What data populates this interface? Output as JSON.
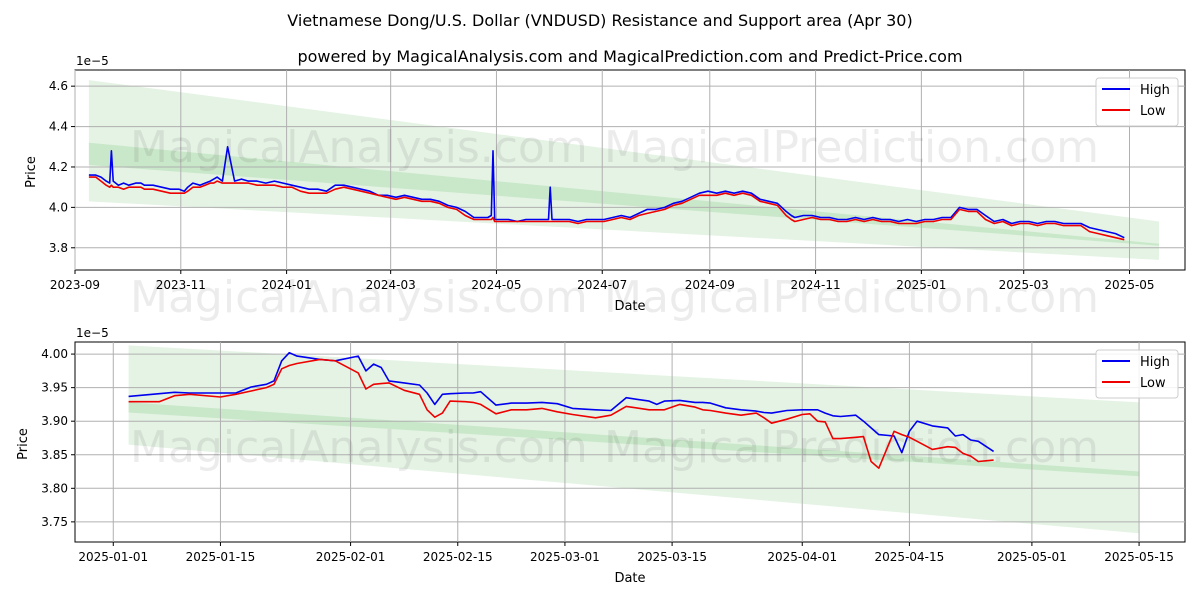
{
  "title": "Vietnamese Dong/U.S. Dollar (VNDUSD) Resistance and Support area (Apr 30)",
  "subtitle": "powered by MagicalAnalysis.com and MagicalPrediction.com and Predict-Price.com",
  "watermarks": [
    "MagicalAnalysis.com",
    "MagicalPrediction.com"
  ],
  "colors": {
    "high": "#0000ee",
    "low": "#ee0000",
    "band": "#2ca02c"
  },
  "chart_data": [
    {
      "type": "line",
      "xlabel": "Date",
      "ylabel": "Price",
      "scale_label": "1e−5",
      "xlim": [
        0,
        640
      ],
      "ylim": [
        3.69,
        4.68
      ],
      "xticks": [
        {
          "x": 0,
          "label": "2023-09"
        },
        {
          "x": 61,
          "label": "2023-11"
        },
        {
          "x": 122,
          "label": "2024-01"
        },
        {
          "x": 182,
          "label": "2024-03"
        },
        {
          "x": 243,
          "label": "2024-05"
        },
        {
          "x": 304,
          "label": "2024-07"
        },
        {
          "x": 366,
          "label": "2024-09"
        },
        {
          "x": 427,
          "label": "2024-11"
        },
        {
          "x": 488,
          "label": "2025-01"
        },
        {
          "x": 547,
          "label": "2025-03"
        },
        {
          "x": 608,
          "label": "2025-05"
        }
      ],
      "yticks": [
        3.8,
        4.0,
        4.2,
        4.4,
        4.6
      ],
      "ytick_labels": [
        "3.8",
        "4.0",
        "4.2",
        "4.4",
        "4.6"
      ],
      "legend": {
        "position": "top-right",
        "entries": [
          "High",
          "Low"
        ]
      },
      "bands": [
        {
          "x": [
            8,
            625
          ],
          "upper": [
            4.63,
            3.93
          ],
          "lower": [
            4.03,
            3.74
          ]
        },
        {
          "x": [
            8,
            625
          ],
          "upper": [
            4.32,
            3.82
          ],
          "lower": [
            4.21,
            3.81
          ]
        }
      ],
      "series": [
        {
          "name": "High",
          "x": [
            8,
            12,
            15,
            18,
            20,
            21,
            22,
            25,
            28,
            31,
            35,
            38,
            40,
            45,
            50,
            55,
            60,
            63,
            65,
            68,
            72,
            75,
            78,
            80,
            82,
            85,
            88,
            92,
            96,
            100,
            105,
            110,
            115,
            120,
            125,
            130,
            135,
            140,
            145,
            150,
            155,
            160,
            165,
            170,
            175,
            180,
            185,
            190,
            195,
            200,
            205,
            210,
            215,
            220,
            225,
            230,
            235,
            238,
            240,
            241,
            242,
            245,
            250,
            255,
            260,
            265,
            270,
            273,
            274,
            275,
            280,
            285,
            290,
            295,
            300,
            305,
            310,
            315,
            320,
            325,
            330,
            335,
            340,
            345,
            350,
            355,
            360,
            365,
            370,
            375,
            380,
            385,
            390,
            395,
            400,
            405,
            410,
            413,
            415,
            420,
            425,
            430,
            435,
            440,
            445,
            450,
            455,
            460,
            465,
            470,
            475,
            480,
            485,
            490,
            495,
            500,
            505,
            510,
            515,
            520,
            525,
            530,
            535,
            540,
            545,
            550,
            555,
            560,
            565,
            570,
            575,
            580,
            585,
            590,
            595,
            600,
            605
          ],
          "values": [
            4.16,
            4.16,
            4.15,
            4.13,
            4.12,
            4.28,
            4.13,
            4.11,
            4.12,
            4.11,
            4.12,
            4.12,
            4.11,
            4.11,
            4.1,
            4.09,
            4.09,
            4.08,
            4.1,
            4.12,
            4.11,
            4.12,
            4.13,
            4.14,
            4.15,
            4.13,
            4.3,
            4.13,
            4.14,
            4.13,
            4.13,
            4.12,
            4.13,
            4.12,
            4.11,
            4.1,
            4.09,
            4.09,
            4.08,
            4.11,
            4.11,
            4.1,
            4.09,
            4.08,
            4.06,
            4.06,
            4.05,
            4.06,
            4.05,
            4.04,
            4.04,
            4.03,
            4.01,
            4.0,
            3.98,
            3.95,
            3.95,
            3.95,
            3.96,
            4.28,
            3.94,
            3.94,
            3.94,
            3.93,
            3.94,
            3.94,
            3.94,
            3.94,
            4.1,
            3.94,
            3.94,
            3.94,
            3.93,
            3.94,
            3.94,
            3.94,
            3.95,
            3.96,
            3.95,
            3.97,
            3.99,
            3.99,
            4.0,
            4.02,
            4.03,
            4.05,
            4.07,
            4.08,
            4.07,
            4.08,
            4.07,
            4.08,
            4.07,
            4.04,
            4.03,
            4.02,
            3.98,
            3.96,
            3.95,
            3.96,
            3.96,
            3.95,
            3.95,
            3.94,
            3.94,
            3.95,
            3.94,
            3.95,
            3.94,
            3.94,
            3.93,
            3.94,
            3.93,
            3.94,
            3.94,
            3.95,
            3.95,
            4.0,
            3.99,
            3.99,
            3.96,
            3.93,
            3.94,
            3.92,
            3.93,
            3.93,
            3.92,
            3.93,
            3.93,
            3.92,
            3.92,
            3.92,
            3.9,
            3.89,
            3.88,
            3.87,
            3.85
          ]
        },
        {
          "name": "Low",
          "x": [
            8,
            12,
            15,
            18,
            20,
            21,
            22,
            25,
            28,
            31,
            35,
            38,
            40,
            45,
            50,
            55,
            60,
            63,
            65,
            68,
            72,
            75,
            78,
            80,
            82,
            85,
            88,
            92,
            96,
            100,
            105,
            110,
            115,
            120,
            125,
            130,
            135,
            140,
            145,
            150,
            155,
            160,
            165,
            170,
            175,
            180,
            185,
            190,
            195,
            200,
            205,
            210,
            215,
            220,
            225,
            230,
            235,
            238,
            240,
            241,
            242,
            245,
            250,
            255,
            260,
            265,
            270,
            273,
            274,
            275,
            280,
            285,
            290,
            295,
            300,
            305,
            310,
            315,
            320,
            325,
            330,
            335,
            340,
            345,
            350,
            355,
            360,
            365,
            370,
            375,
            380,
            385,
            390,
            395,
            400,
            405,
            410,
            413,
            415,
            420,
            425,
            430,
            435,
            440,
            445,
            450,
            455,
            460,
            465,
            470,
            475,
            480,
            485,
            490,
            495,
            500,
            505,
            510,
            515,
            520,
            525,
            530,
            535,
            540,
            545,
            550,
            555,
            560,
            565,
            570,
            575,
            580,
            585,
            590,
            595,
            600,
            605
          ],
          "values": [
            4.15,
            4.15,
            4.13,
            4.11,
            4.1,
            4.11,
            4.1,
            4.1,
            4.09,
            4.1,
            4.1,
            4.1,
            4.09,
            4.09,
            4.08,
            4.07,
            4.07,
            4.07,
            4.08,
            4.1,
            4.1,
            4.11,
            4.12,
            4.12,
            4.13,
            4.12,
            4.12,
            4.12,
            4.12,
            4.12,
            4.11,
            4.11,
            4.11,
            4.1,
            4.1,
            4.08,
            4.07,
            4.07,
            4.07,
            4.09,
            4.1,
            4.09,
            4.08,
            4.07,
            4.06,
            4.05,
            4.04,
            4.05,
            4.04,
            4.03,
            4.03,
            4.02,
            4.0,
            3.99,
            3.96,
            3.94,
            3.94,
            3.94,
            3.94,
            3.95,
            3.93,
            3.93,
            3.93,
            3.93,
            3.93,
            3.93,
            3.93,
            3.93,
            3.93,
            3.93,
            3.93,
            3.93,
            3.92,
            3.93,
            3.93,
            3.93,
            3.94,
            3.95,
            3.94,
            3.96,
            3.97,
            3.98,
            3.99,
            4.01,
            4.02,
            4.04,
            4.06,
            4.06,
            4.06,
            4.07,
            4.06,
            4.07,
            4.06,
            4.03,
            4.02,
            4.01,
            3.96,
            3.94,
            3.93,
            3.94,
            3.95,
            3.94,
            3.94,
            3.93,
            3.93,
            3.94,
            3.93,
            3.94,
            3.93,
            3.93,
            3.92,
            3.92,
            3.92,
            3.93,
            3.93,
            3.94,
            3.94,
            3.99,
            3.98,
            3.98,
            3.94,
            3.92,
            3.93,
            3.91,
            3.92,
            3.92,
            3.91,
            3.92,
            3.92,
            3.91,
            3.91,
            3.91,
            3.88,
            3.87,
            3.86,
            3.85,
            3.84
          ]
        }
      ]
    },
    {
      "type": "line",
      "xlabel": "Date",
      "ylabel": "Price",
      "scale_label": "1e−5",
      "xlim": [
        -5,
        140
      ],
      "ylim": [
        3.72,
        4.018
      ],
      "xticks": [
        {
          "x": 0,
          "label": "2025-01-01"
        },
        {
          "x": 14,
          "label": "2025-01-15"
        },
        {
          "x": 31,
          "label": "2025-02-01"
        },
        {
          "x": 45,
          "label": "2025-02-15"
        },
        {
          "x": 59,
          "label": "2025-03-01"
        },
        {
          "x": 73,
          "label": "2025-03-15"
        },
        {
          "x": 90,
          "label": "2025-04-01"
        },
        {
          "x": 104,
          "label": "2025-04-15"
        },
        {
          "x": 120,
          "label": "2025-05-01"
        },
        {
          "x": 134,
          "label": "2025-05-15"
        }
      ],
      "yticks": [
        3.75,
        3.8,
        3.85,
        3.9,
        3.95,
        4.0
      ],
      "ytick_labels": [
        "3.75",
        "3.80",
        "3.85",
        "3.90",
        "3.95",
        "4.00"
      ],
      "legend": {
        "position": "top-right",
        "entries": [
          "High",
          "Low"
        ]
      },
      "bands": [
        {
          "x": [
            2,
            134
          ],
          "upper": [
            4.013,
            3.928
          ],
          "lower": [
            3.865,
            3.733
          ]
        },
        {
          "x": [
            2,
            134
          ],
          "upper": [
            3.928,
            3.825
          ],
          "lower": [
            3.913,
            3.818
          ]
        }
      ],
      "series": [
        {
          "name": "High",
          "x": [
            2,
            6,
            8,
            10,
            14,
            16,
            18,
            20,
            21,
            22,
            23,
            24,
            27,
            29,
            32,
            33,
            34,
            35,
            36,
            38,
            40,
            41,
            42,
            43,
            44,
            46,
            47,
            48,
            50,
            52,
            54,
            56,
            58,
            60,
            63,
            65,
            67,
            70,
            71,
            72,
            74,
            76,
            77,
            78,
            80,
            82,
            84,
            85,
            86,
            88,
            90,
            91,
            92,
            93,
            94,
            95,
            97,
            98,
            99,
            100,
            102,
            103,
            104,
            105,
            107,
            109,
            110,
            111,
            112,
            113,
            115
          ],
          "values": [
            3.937,
            3.941,
            3.943,
            3.942,
            3.942,
            3.942,
            3.951,
            3.955,
            3.96,
            3.99,
            4.002,
            3.997,
            3.992,
            3.99,
            3.997,
            3.975,
            3.985,
            3.98,
            3.96,
            3.957,
            3.954,
            3.942,
            3.925,
            3.94,
            3.941,
            3.942,
            3.942,
            3.944,
            3.924,
            3.927,
            3.927,
            3.928,
            3.926,
            3.919,
            3.917,
            3.916,
            3.935,
            3.93,
            3.925,
            3.93,
            3.931,
            3.928,
            3.928,
            3.927,
            3.92,
            3.917,
            3.915,
            3.913,
            3.912,
            3.916,
            3.917,
            3.917,
            3.917,
            3.912,
            3.908,
            3.907,
            3.909,
            3.9,
            3.89,
            3.88,
            3.878,
            3.853,
            3.885,
            3.9,
            3.893,
            3.89,
            3.878,
            3.88,
            3.872,
            3.87,
            3.855
          ]
        },
        {
          "name": "Low",
          "x": [
            2,
            6,
            8,
            10,
            14,
            16,
            18,
            20,
            21,
            22,
            23,
            24,
            27,
            29,
            32,
            33,
            34,
            35,
            36,
            38,
            40,
            41,
            42,
            43,
            44,
            46,
            47,
            48,
            50,
            52,
            54,
            56,
            58,
            60,
            63,
            65,
            67,
            70,
            71,
            72,
            74,
            76,
            77,
            78,
            80,
            82,
            84,
            85,
            86,
            88,
            90,
            91,
            92,
            93,
            94,
            95,
            97,
            98,
            99,
            100,
            102,
            103,
            104,
            105,
            107,
            109,
            110,
            111,
            112,
            113,
            115
          ],
          "values": [
            3.929,
            3.929,
            3.938,
            3.94,
            3.936,
            3.94,
            3.945,
            3.95,
            3.955,
            3.978,
            3.983,
            3.986,
            3.992,
            3.99,
            3.972,
            3.948,
            3.955,
            3.956,
            3.957,
            3.946,
            3.94,
            3.917,
            3.906,
            3.912,
            3.93,
            3.929,
            3.928,
            3.925,
            3.911,
            3.917,
            3.917,
            3.919,
            3.914,
            3.91,
            3.905,
            3.909,
            3.922,
            3.917,
            3.917,
            3.917,
            3.925,
            3.921,
            3.917,
            3.916,
            3.912,
            3.909,
            3.912,
            3.905,
            3.897,
            3.903,
            3.91,
            3.911,
            3.9,
            3.899,
            3.874,
            3.874,
            3.876,
            3.877,
            3.84,
            3.83,
            3.885,
            3.88,
            3.876,
            3.87,
            3.858,
            3.862,
            3.861,
            3.852,
            3.848,
            3.84,
            3.842
          ]
        }
      ]
    }
  ]
}
